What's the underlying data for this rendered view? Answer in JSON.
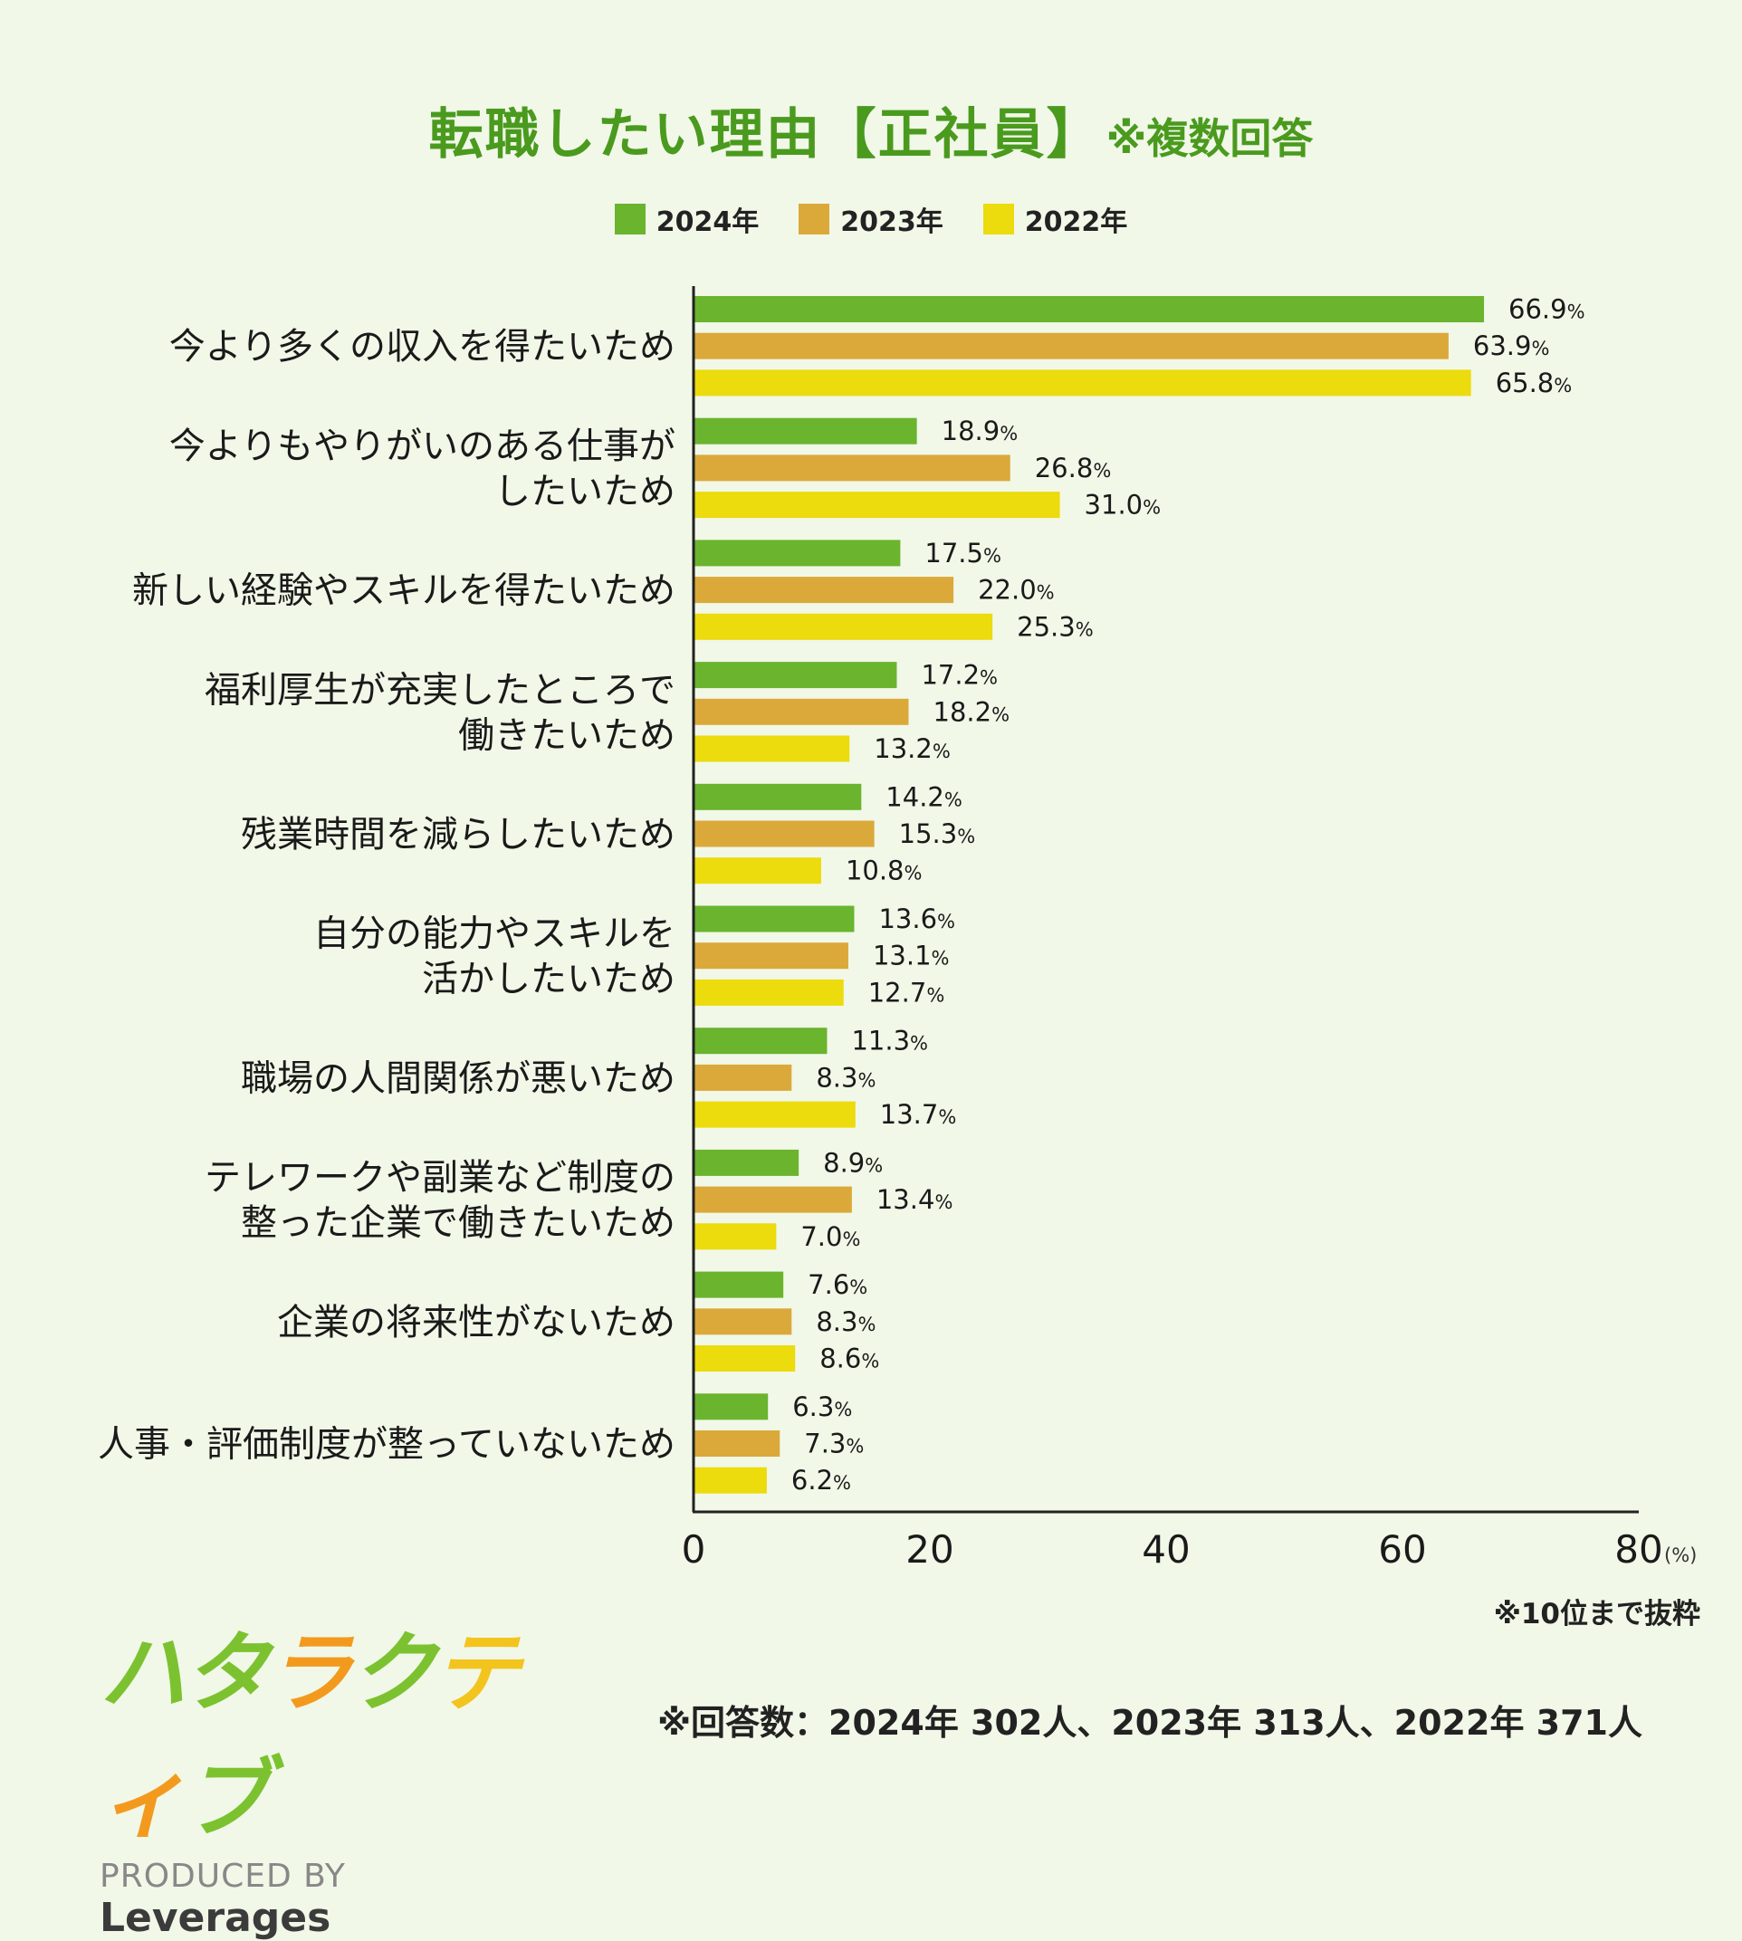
{
  "chart_data": {
    "type": "bar",
    "orientation": "horizontal",
    "title": "転職したい理由【正社員】",
    "title_note": "※複数回答",
    "xlim": [
      0,
      80
    ],
    "xticks": [
      "0",
      "20",
      "40",
      "60",
      "80"
    ],
    "x_unit": "(%)",
    "value_suffix": "%",
    "legend_position": "top-center",
    "grid": false,
    "categories": [
      [
        "今より多くの収入を得たいため"
      ],
      [
        "今よりもやりがいのある仕事が",
        "したいため"
      ],
      [
        "新しい経験やスキルを得たいため"
      ],
      [
        "福利厚生が充実したところで",
        "働きたいため"
      ],
      [
        "残業時間を減らしたいため"
      ],
      [
        "自分の能力やスキルを",
        "活かしたいため"
      ],
      [
        "職場の人間関係が悪いため"
      ],
      [
        "テレワークや副業など制度の",
        "整った企業で働きたいため"
      ],
      [
        "企業の将来性がないため"
      ],
      [
        "人事・評価制度が整っていないため"
      ]
    ],
    "series": [
      {
        "name": "2024年",
        "color": "#6ab42e",
        "values": [
          66.9,
          18.9,
          17.5,
          17.2,
          14.2,
          13.6,
          11.3,
          8.9,
          7.6,
          6.3
        ]
      },
      {
        "name": "2023年",
        "color": "#dba93a",
        "values": [
          63.9,
          26.8,
          22.0,
          18.2,
          15.3,
          13.1,
          8.3,
          13.4,
          8.3,
          7.3
        ]
      },
      {
        "name": "2022年",
        "color": "#ecdb0d",
        "values": [
          65.8,
          31.0,
          25.3,
          13.2,
          10.8,
          12.7,
          13.7,
          7.0,
          8.6,
          6.2
        ]
      }
    ]
  },
  "notes": {
    "top10": "※10位まで抜粋",
    "respondents": "※回答数：2024年 302人、2023年 313人、2022年 371人"
  },
  "logo": {
    "mark_parts": [
      "ハタ",
      "ラ",
      "ク",
      "テ",
      "ィ",
      "ブ"
    ],
    "produced_by": "PRODUCED BY",
    "brand": "Leverages"
  }
}
